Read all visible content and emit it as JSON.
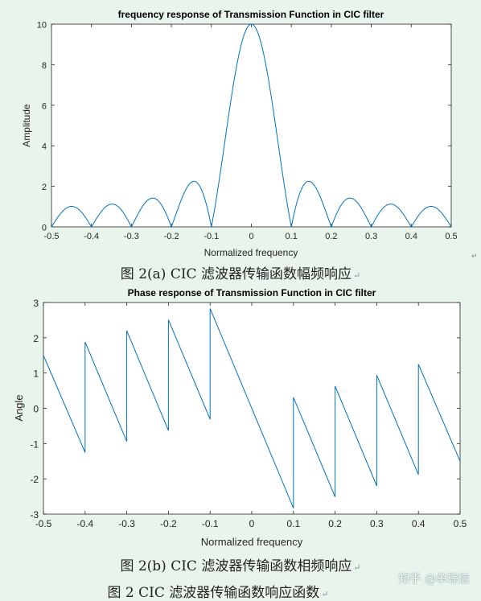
{
  "colors": {
    "line": "#0072bd",
    "axis": "#262626",
    "grid_bg": "#ffffff",
    "page_bg": "#e9f5ec"
  },
  "captions": {
    "fig_a": "图 2(a) CIC 滤波器传输函数幅频响应",
    "fig_b": "图 2(b) CIC 滤波器传输函数相频响应",
    "fig_main": "图 2 CIC 滤波器传输函数响应函数",
    "para_mark": "↵"
  },
  "watermark": "知乎 @单琮信",
  "chart_data": [
    {
      "type": "line",
      "title": "frequency response of Transmission Function in CIC filter",
      "xlabel": "Normalized frequency",
      "ylabel": "Amplitude",
      "xlim": [
        -0.5,
        0.5
      ],
      "ylim": [
        0,
        10
      ],
      "xticks": [
        "-0.5",
        "-0.4",
        "-0.3",
        "-0.2",
        "-0.1",
        "0",
        "0.1",
        "0.2",
        "0.3",
        "0.4",
        "0.5"
      ],
      "yticks": [
        "0",
        "2",
        "4",
        "6",
        "8",
        "10"
      ],
      "formula": "|sin(10*pi*f)/sin(pi*f)|",
      "peak": {
        "x": 0,
        "y": 10
      },
      "sidelobe_peaks": [
        {
          "x": -0.45,
          "y": 1.0
        },
        {
          "x": -0.35,
          "y": 1.11
        },
        {
          "x": -0.25,
          "y": 1.41
        },
        {
          "x": -0.15,
          "y": 2.24
        },
        {
          "x": 0.15,
          "y": 2.24
        },
        {
          "x": 0.25,
          "y": 1.41
        },
        {
          "x": 0.35,
          "y": 1.11
        },
        {
          "x": 0.45,
          "y": 1.0
        }
      ],
      "zeros": [
        -0.5,
        -0.4,
        -0.3,
        -0.2,
        -0.1,
        0.1,
        0.2,
        0.3,
        0.4,
        0.5
      ],
      "grid": false
    },
    {
      "type": "line",
      "title": "Phase response of Transmission Function in CIC filter",
      "xlabel": "Normalized frequency",
      "ylabel": "Angle",
      "xlim": [
        -0.5,
        0.5
      ],
      "ylim": [
        -3,
        3
      ],
      "xticks": [
        "-0.5",
        "-0.4",
        "-0.3",
        "-0.2",
        "-0.1",
        "0",
        "0.1",
        "0.2",
        "0.3",
        "0.4",
        "0.5"
      ],
      "yticks": [
        "-3",
        "-2",
        "-1",
        "0",
        "1",
        "2",
        "3"
      ],
      "x": [
        -0.5,
        -0.4,
        -0.4,
        -0.3,
        -0.3,
        -0.2,
        -0.2,
        -0.1,
        -0.1,
        0.1,
        0.1,
        0.2,
        0.2,
        0.3,
        0.3,
        0.4,
        0.4,
        0.5
      ],
      "y": [
        1.5,
        -1.25,
        1.88,
        -0.94,
        2.2,
        -0.63,
        2.51,
        -0.31,
        2.83,
        -2.83,
        0.31,
        -2.51,
        0.63,
        -2.2,
        0.94,
        -1.88,
        1.25,
        -1.5
      ],
      "grid": false
    }
  ]
}
